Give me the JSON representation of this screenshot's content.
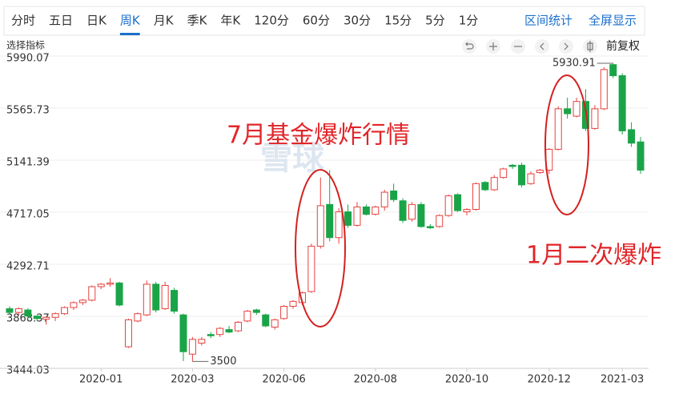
{
  "toolbar": {
    "tabs": [
      "分时",
      "五日",
      "日K",
      "周K",
      "月K",
      "季K",
      "年K",
      "120分",
      "60分",
      "30分",
      "15分",
      "5分",
      "1分"
    ],
    "active": 3,
    "actions": [
      "区间统计",
      "全屏显示"
    ],
    "indicator": "选择指标",
    "adjust": "前复权"
  },
  "watermark": "雪球",
  "chart_data": {
    "type": "candlestick",
    "up_color": "#e8413e",
    "down_color": "#1aa448",
    "open": [
      3930,
      3900,
      3920,
      3870,
      3845,
      3860,
      3890,
      3940,
      3980,
      4000,
      4110,
      4130,
      4140,
      3620,
      3830,
      3880,
      4130,
      3930,
      4080,
      3880,
      3560,
      3650,
      3720,
      3720,
      3760,
      3750,
      3830,
      3920,
      3880,
      3780,
      3850,
      3950,
      3980,
      4070,
      4440,
      4780,
      4510,
      4720,
      4610,
      4760,
      4700,
      4760,
      4890,
      4810,
      4660,
      4780,
      4600,
      4600,
      4690,
      4860,
      4720,
      4740,
      4960,
      4900,
      5000,
      5100,
      5100,
      4950,
      5040,
      5060,
      5230,
      5560,
      5500,
      5620,
      5400,
      5560,
      5920,
      5830,
      5390,
      5290
    ],
    "high": [
      3950,
      3940,
      3935,
      3880,
      3870,
      3900,
      3950,
      3990,
      4010,
      4120,
      4140,
      4180,
      4150,
      3850,
      3900,
      4160,
      4150,
      4150,
      4100,
      3890,
      3700,
      3700,
      3740,
      3780,
      3790,
      3830,
      3920,
      3930,
      3890,
      3850,
      3960,
      4000,
      4070,
      4460,
      5000,
      5060,
      4750,
      4780,
      4800,
      4780,
      4770,
      4900,
      4950,
      4830,
      4800,
      4800,
      4620,
      4700,
      4860,
      4870,
      4750,
      4960,
      4970,
      5020,
      5080,
      5110,
      5120,
      5050,
      5070,
      5240,
      5580,
      5650,
      5650,
      5720,
      5590,
      5900,
      5930.91,
      5850,
      5450,
      5330
    ],
    "low": [
      3890,
      3880,
      3840,
      3830,
      3800,
      3830,
      3880,
      3920,
      3960,
      3990,
      4090,
      4110,
      3950,
      3610,
      3820,
      3870,
      3900,
      3920,
      3890,
      3503.19,
      3500,
      3630,
      3690,
      3700,
      3730,
      3740,
      3820,
      3880,
      3780,
      3760,
      3840,
      3930,
      3960,
      4060,
      4420,
      4480,
      4460,
      4590,
      4600,
      4690,
      4690,
      4730,
      4800,
      4630,
      4640,
      4590,
      4580,
      4590,
      4680,
      4720,
      4690,
      4730,
      4890,
      4890,
      4990,
      5070,
      4920,
      4940,
      5030,
      5030,
      5220,
      5480,
      5490,
      5380,
      5390,
      5550,
      5810,
      5350,
      5250,
      5030
    ],
    "close": [
      3900,
      3930,
      3870,
      3850,
      3860,
      3890,
      3940,
      3980,
      4000,
      4110,
      4130,
      4140,
      3960,
      3840,
      3890,
      4130,
      3920,
      4120,
      3910,
      3580,
      3680,
      3680,
      3710,
      3770,
      3740,
      3820,
      3910,
      3900,
      3790,
      3840,
      3950,
      3990,
      4060,
      4440,
      4770,
      4510,
      4720,
      4610,
      4760,
      4700,
      4760,
      4880,
      4820,
      4650,
      4780,
      4600,
      4590,
      4690,
      4850,
      4730,
      4740,
      4950,
      4900,
      5000,
      5070,
      5090,
      4940,
      5030,
      5060,
      5230,
      5560,
      5520,
      5620,
      5400,
      5560,
      5880,
      5830,
      5380,
      5280,
      5060
    ],
    "ylim": [
      3444.03,
      5990.07
    ],
    "yticks": [
      3444.03,
      3868.37,
      4292.71,
      4717.05,
      5141.39,
      5565.73,
      5990.07
    ],
    "xticks": [
      {
        "value": 10,
        "label": "2020-01"
      },
      {
        "value": 20,
        "label": "2020-03"
      },
      {
        "value": 30,
        "label": "2020-06"
      },
      {
        "value": 40,
        "label": "2020-08"
      },
      {
        "value": 50,
        "label": "2020-10"
      },
      {
        "value": 59,
        "label": "2020-12"
      },
      {
        "value": 67,
        "label": "2021-03"
      }
    ],
    "grid": true,
    "annotations": [
      "7月基金爆炸行情",
      "1月二次爆炸"
    ]
  }
}
